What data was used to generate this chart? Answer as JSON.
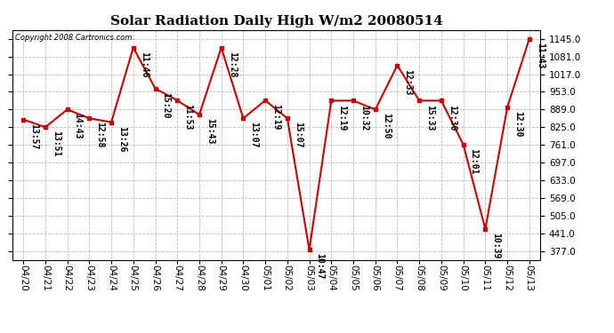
{
  "title": "Solar Radiation Daily High W/m2 20080514",
  "copyright": "Copyright 2008 Cartronics.com",
  "x_labels": [
    "04/20",
    "04/21",
    "04/22",
    "04/23",
    "04/24",
    "04/25",
    "04/26",
    "04/27",
    "04/28",
    "04/29",
    "04/30",
    "05/01",
    "05/02",
    "05/03",
    "05/04",
    "05/05",
    "05/06",
    "05/07",
    "05/08",
    "05/09",
    "05/10",
    "05/11",
    "05/12",
    "05/13"
  ],
  "y_values": [
    853,
    825,
    889,
    857,
    843,
    1113,
    965,
    922,
    870,
    1113,
    857,
    922,
    857,
    381,
    921,
    921,
    889,
    1049,
    921,
    921,
    762,
    456,
    897,
    1145
  ],
  "point_labels": [
    "13:57",
    "13:51",
    "14:43",
    "12:58",
    "13:26",
    "11:46",
    "15:20",
    "11:53",
    "15:43",
    "12:28",
    "13:07",
    "12:19",
    "15:07",
    "10:47",
    "12:19",
    "10:32",
    "12:50",
    "12:33",
    "15:33",
    "12:30",
    "12:01",
    "10:39",
    "12:30",
    "11:43"
  ],
  "line_color": "#cc0000",
  "marker_color": "#cc0000",
  "bg_color": "#ffffff",
  "grid_color": "#bbbbbb",
  "y_ticks": [
    377.0,
    441.0,
    505.0,
    569.0,
    633.0,
    697.0,
    761.0,
    825.0,
    889.0,
    953.0,
    1017.0,
    1081.0,
    1145.0
  ],
  "ylim": [
    345,
    1177
  ],
  "title_fontsize": 11,
  "label_fontsize": 7,
  "tick_fontsize": 7.5
}
